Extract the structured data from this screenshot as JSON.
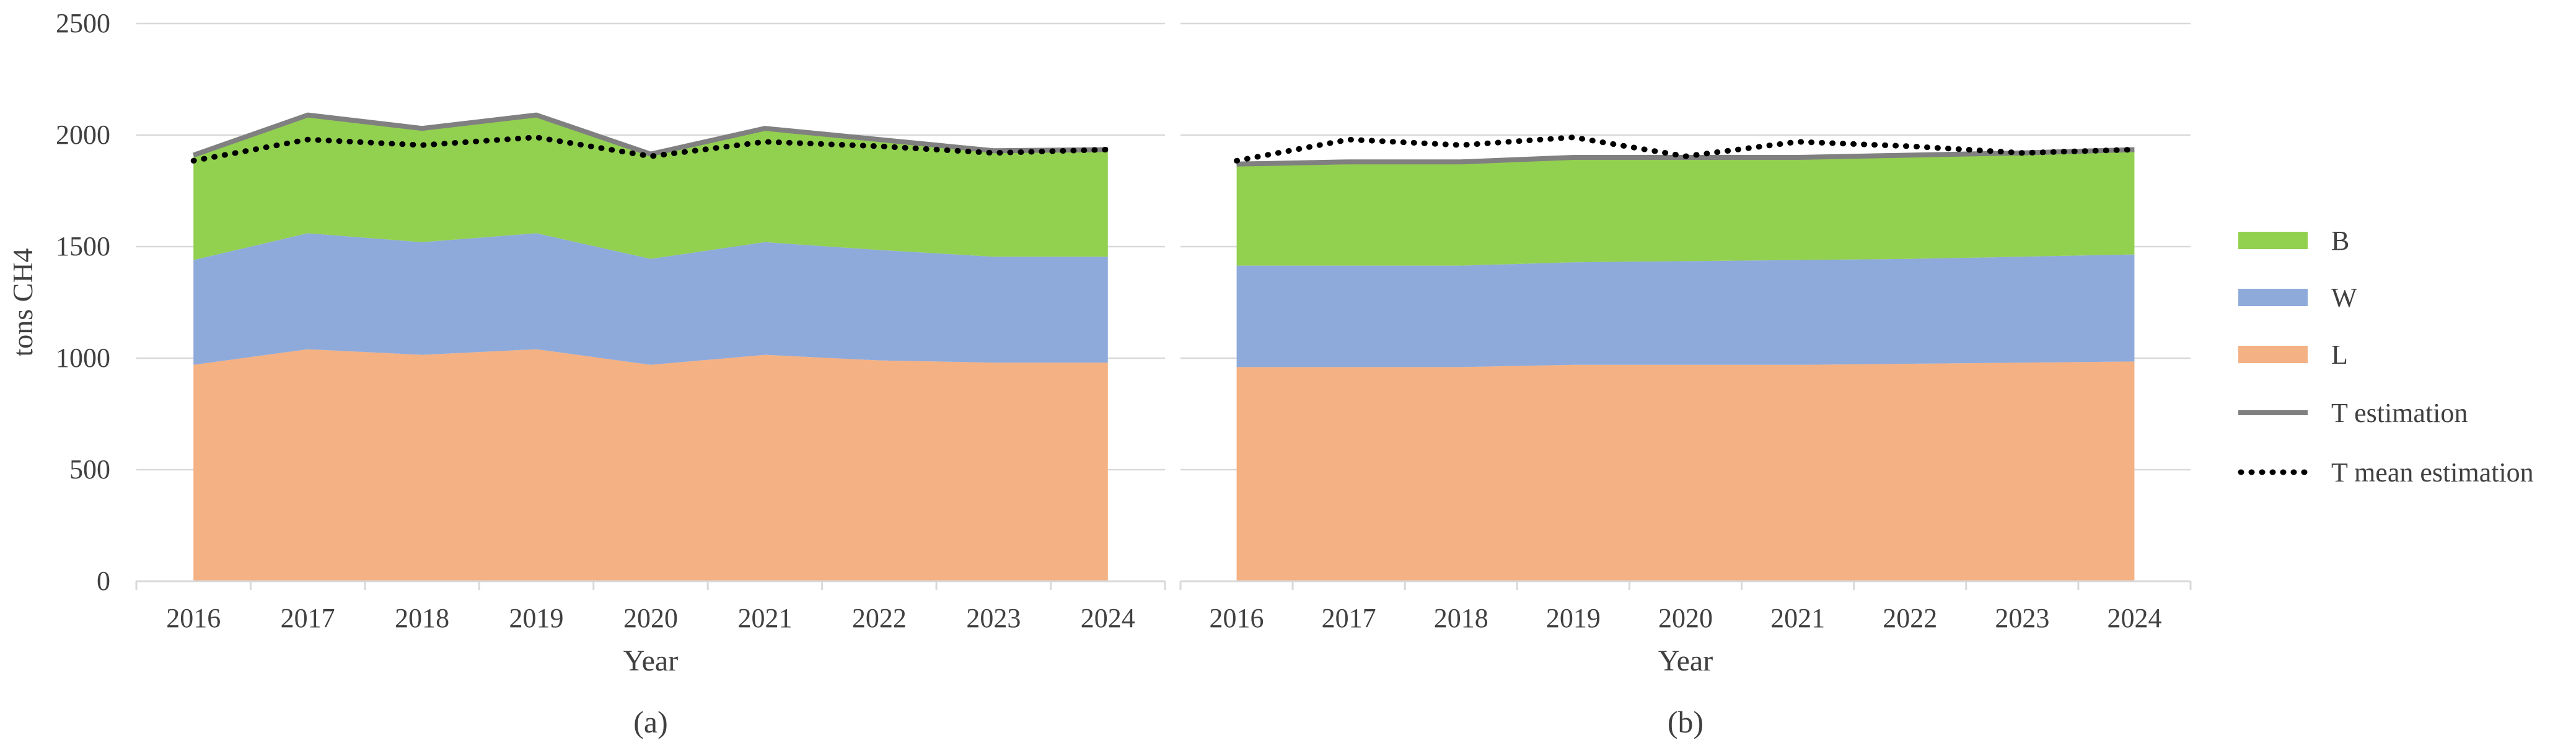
{
  "chart_data": [
    {
      "type": "area",
      "panel_label": "(a)",
      "stacked": true,
      "xlabel": "Year",
      "ylabel": "tons CH4",
      "ylim": [
        0,
        2500
      ],
      "yticks": [
        "0",
        "500",
        "1000",
        "1500",
        "2000",
        "2500"
      ],
      "categories": [
        "2016",
        "2017",
        "2018",
        "2019",
        "2020",
        "2021",
        "2022",
        "2023",
        "2024"
      ],
      "series": [
        {
          "name": "L",
          "kind": "area",
          "values": [
            970,
            1040,
            1015,
            1040,
            970,
            1015,
            990,
            980,
            980
          ]
        },
        {
          "name": "W",
          "kind": "area",
          "values": [
            470,
            520,
            505,
            520,
            475,
            505,
            495,
            475,
            475
          ]
        },
        {
          "name": "B",
          "kind": "area",
          "values": [
            470,
            530,
            510,
            530,
            470,
            510,
            495,
            475,
            480
          ]
        },
        {
          "name": "T estimation",
          "kind": "line",
          "values": [
            1910,
            2090,
            2030,
            2090,
            1915,
            2030,
            1980,
            1930,
            1935
          ]
        },
        {
          "name": "T mean estimation",
          "kind": "dotted-line",
          "values": [
            1885,
            1980,
            1955,
            1990,
            1905,
            1970,
            1950,
            1920,
            1935
          ]
        }
      ]
    },
    {
      "type": "area",
      "panel_label": "(b)",
      "stacked": true,
      "xlabel": "Year",
      "ylabel": "",
      "ylim": [
        0,
        2500
      ],
      "categories": [
        "2016",
        "2017",
        "2018",
        "2019",
        "2020",
        "2021",
        "2022",
        "2023",
        "2024"
      ],
      "series": [
        {
          "name": "L",
          "kind": "area",
          "values": [
            960,
            960,
            960,
            970,
            970,
            970,
            975,
            980,
            985
          ]
        },
        {
          "name": "W",
          "kind": "area",
          "values": [
            455,
            455,
            455,
            460,
            465,
            470,
            470,
            475,
            480
          ]
        },
        {
          "name": "B",
          "kind": "area",
          "values": [
            455,
            465,
            465,
            470,
            465,
            460,
            465,
            465,
            470
          ]
        },
        {
          "name": "T estimation",
          "kind": "line",
          "values": [
            1870,
            1880,
            1880,
            1900,
            1900,
            1900,
            1910,
            1920,
            1935
          ]
        },
        {
          "name": "T mean estimation",
          "kind": "dotted-line",
          "values": [
            1885,
            1980,
            1955,
            1990,
            1905,
            1970,
            1950,
            1920,
            1935
          ]
        }
      ]
    }
  ],
  "legend": {
    "items": [
      {
        "label": "B",
        "kind": "swatch",
        "color": "#92d050"
      },
      {
        "label": "W",
        "kind": "swatch",
        "color": "#8eaadb"
      },
      {
        "label": "L",
        "kind": "swatch",
        "color": "#f4b183"
      },
      {
        "label": "T estimation",
        "kind": "line",
        "color": "#808080"
      },
      {
        "label": "T mean estimation",
        "kind": "dotted",
        "color": "#000000"
      }
    ]
  },
  "colors": {
    "L": "#f4b183",
    "W": "#8eaadb",
    "B": "#92d050",
    "T_estimation": "#808080",
    "T_mean": "#000000",
    "grid": "#d9d9d9"
  }
}
